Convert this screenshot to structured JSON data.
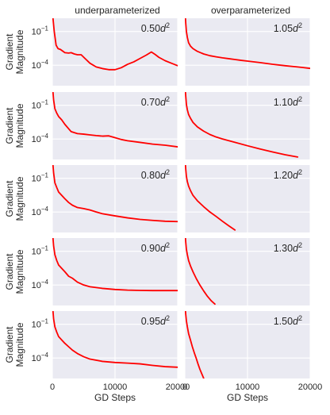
{
  "chart_data": {
    "type": "line",
    "layout": "grid-5x2",
    "columns": [
      "underparameterized",
      "overparameterized"
    ],
    "ylabel": "Gradient\nMagnitude",
    "xlabel": "GD Steps",
    "xlim": [
      0,
      20000
    ],
    "xticks": [
      0,
      10000,
      20000
    ],
    "yscale": "log",
    "ylim": [
      1.5e-06,
      1.5
    ],
    "yticks": [
      {
        "value": 0.1,
        "base": "10",
        "exp": "−1"
      },
      {
        "value": 0.0001,
        "base": "10",
        "exp": "−4"
      }
    ],
    "grid": true,
    "panels": [
      {
        "row": 0,
        "col": 0,
        "annotation": {
          "coef": "0.50",
          "var": "d",
          "exp": "2"
        },
        "x": [
          100,
          300,
          600,
          900,
          1300,
          2000,
          2600,
          3000,
          3500,
          4000,
          4600,
          5200,
          6000,
          7000,
          8000,
          9000,
          10000,
          11000,
          12000,
          13000,
          14000,
          15000,
          15800,
          16400,
          17000,
          18000,
          19000,
          20000
        ],
        "y": [
          1.5,
          0.1,
          0.006,
          0.003,
          0.0025,
          0.0013,
          0.0012,
          0.0013,
          0.001,
          0.00085,
          0.00085,
          0.0004,
          0.00015,
          7e-05,
          5e-05,
          4e-05,
          4e-05,
          6e-05,
          0.00012,
          0.0002,
          0.0004,
          0.0008,
          0.0015,
          0.0009,
          0.0005,
          0.00025,
          0.00015,
          9e-05
        ]
      },
      {
        "row": 0,
        "col": 1,
        "annotation": {
          "coef": "1.05",
          "var": "d",
          "exp": "2"
        },
        "x": [
          100,
          150,
          250,
          400,
          600,
          900,
          1300,
          2000,
          3000,
          4000,
          5000,
          6000,
          7000,
          8000,
          9000,
          10000,
          12000,
          14000,
          16000,
          18000,
          20000
        ],
        "y": [
          1.5,
          0.5,
          0.1,
          0.03,
          0.01,
          0.005,
          0.003,
          0.0017,
          0.001,
          0.0007,
          0.00055,
          0.00045,
          0.00038,
          0.00032,
          0.00027,
          0.00023,
          0.00017,
          0.00012,
          9e-05,
          7e-05,
          5.2e-05
        ]
      },
      {
        "row": 1,
        "col": 0,
        "annotation": {
          "coef": "0.70",
          "var": "d",
          "exp": "2"
        },
        "x": [
          100,
          200,
          400,
          700,
          1000,
          1500,
          2000,
          3000,
          4000,
          5000,
          6000,
          7000,
          8000,
          9000,
          10000,
          11000,
          12000,
          14000,
          16000,
          18000,
          20000
        ],
        "y": [
          1.5,
          0.3,
          0.05,
          0.02,
          0.01,
          0.005,
          0.002,
          0.00045,
          0.0003,
          0.00027,
          0.00023,
          0.0002,
          0.00018,
          0.00019,
          0.00013,
          9e-05,
          7e-05,
          5e-05,
          3.5e-05,
          2.8e-05,
          2e-05
        ]
      },
      {
        "row": 1,
        "col": 1,
        "annotation": {
          "coef": "1.10",
          "var": "d",
          "exp": "2"
        },
        "x": [
          100,
          150,
          250,
          400,
          600,
          900,
          1300,
          2000,
          3000,
          4000,
          5000,
          6000,
          8000,
          10000,
          12000,
          14000,
          16000,
          18000
        ],
        "y": [
          1.5,
          0.6,
          0.12,
          0.04,
          0.015,
          0.007,
          0.003,
          0.0012,
          0.0005,
          0.00025,
          0.00015,
          0.0001,
          5e-05,
          2.5e-05,
          1.3e-05,
          7e-06,
          4e-06,
          2.5e-06
        ]
      },
      {
        "row": 2,
        "col": 0,
        "annotation": {
          "coef": "0.80",
          "var": "d",
          "exp": "2"
        },
        "x": [
          100,
          200,
          400,
          700,
          1000,
          1500,
          2000,
          2600,
          3200,
          4000,
          5000,
          6000,
          7000,
          8000,
          10000,
          12000,
          14000,
          16000,
          18000,
          20000
        ],
        "y": [
          1.5,
          0.3,
          0.04,
          0.015,
          0.006,
          0.003,
          0.0015,
          0.0007,
          0.0004,
          0.00025,
          0.0002,
          0.00015,
          0.0001,
          7e-05,
          4.5e-05,
          3e-05,
          2.2e-05,
          1.8e-05,
          1.5e-05,
          1.4e-05
        ]
      },
      {
        "row": 2,
        "col": 1,
        "annotation": {
          "coef": "1.20",
          "var": "d",
          "exp": "2"
        },
        "x": [
          100,
          150,
          250,
          400,
          600,
          900,
          1300,
          2000,
          3000,
          4000,
          5000,
          6000,
          7000,
          8000
        ],
        "y": [
          1.5,
          0.6,
          0.15,
          0.05,
          0.02,
          0.008,
          0.003,
          0.001,
          0.0003,
          0.0001,
          4e-05,
          1.5e-05,
          6e-06,
          2.5e-06
        ]
      },
      {
        "row": 3,
        "col": 0,
        "annotation": {
          "coef": "0.90",
          "var": "d",
          "exp": "2"
        },
        "x": [
          100,
          200,
          400,
          700,
          1000,
          1500,
          2000,
          2600,
          3200,
          4000,
          5000,
          6000,
          8000,
          10000,
          12000,
          14000,
          16000,
          18000,
          20000
        ],
        "y": [
          1.5,
          0.3,
          0.05,
          0.015,
          0.006,
          0.003,
          0.0015,
          0.0006,
          0.0004,
          0.00018,
          0.0001,
          7e-05,
          5e-05,
          4e-05,
          3.5e-05,
          3.3e-05,
          3.2e-05,
          3.2e-05,
          3.2e-05
        ]
      },
      {
        "row": 3,
        "col": 1,
        "annotation": {
          "coef": "1.30",
          "var": "d",
          "exp": "2"
        },
        "x": [
          100,
          150,
          250,
          400,
          600,
          900,
          1300,
          1800,
          2400,
          3000,
          3600,
          4200,
          4800
        ],
        "y": [
          1.5,
          0.6,
          0.15,
          0.05,
          0.015,
          0.005,
          0.0015,
          0.0004,
          0.0001,
          3e-05,
          1e-05,
          4e-06,
          2e-06
        ]
      },
      {
        "row": 4,
        "col": 0,
        "annotation": {
          "coef": "0.95",
          "var": "d",
          "exp": "2"
        },
        "x": [
          100,
          200,
          400,
          700,
          1000,
          1500,
          2000,
          2600,
          3200,
          4000,
          5000,
          6000,
          8000,
          10000,
          12000,
          14000,
          16000,
          18000,
          20000
        ],
        "y": [
          1.5,
          0.3,
          0.06,
          0.02,
          0.008,
          0.004,
          0.002,
          0.001,
          0.0005,
          0.00025,
          0.00013,
          8e-05,
          5e-05,
          4e-05,
          3.5e-05,
          3e-05,
          2.2e-05,
          1.7e-05,
          1.5e-05
        ]
      },
      {
        "row": 4,
        "col": 1,
        "annotation": {
          "coef": "1.50",
          "var": "d",
          "exp": "2"
        },
        "x": [
          100,
          150,
          250,
          400,
          600,
          900,
          1200,
          1500,
          1800,
          2100,
          2400,
          2700,
          3000
        ],
        "y": [
          1.5,
          0.7,
          0.2,
          0.06,
          0.015,
          0.004,
          0.001,
          0.0003,
          0.0001,
          3e-05,
          1e-05,
          4e-06,
          1.6e-06
        ]
      }
    ]
  }
}
